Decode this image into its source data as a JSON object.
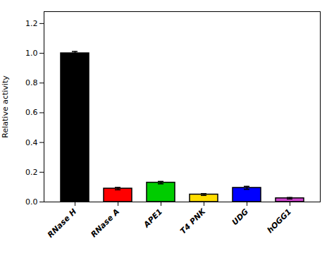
{
  "chart_data": {
    "type": "bar",
    "categories": [
      "RNase H",
      "RNase A",
      "APE1",
      "T4 PNK",
      "UDG",
      "hOGG1"
    ],
    "values": [
      1.0,
      0.09,
      0.13,
      0.05,
      0.095,
      0.025
    ],
    "errors": [
      0.012,
      0.008,
      0.008,
      0.006,
      0.01,
      0.005
    ],
    "colors": [
      "#000000",
      "#ff0000",
      "#00cc00",
      "#ffdd00",
      "#0000ff",
      "#cc44cc"
    ],
    "ylabel": "Relative activity",
    "ylim": [
      0,
      1.28
    ],
    "yticks": [
      {
        "value": 0.0,
        "label": "0.0"
      },
      0.2,
      0.4,
      0.6,
      0.8,
      {
        "value": 1.0,
        "label": "1.0"
      },
      1.2
    ]
  }
}
